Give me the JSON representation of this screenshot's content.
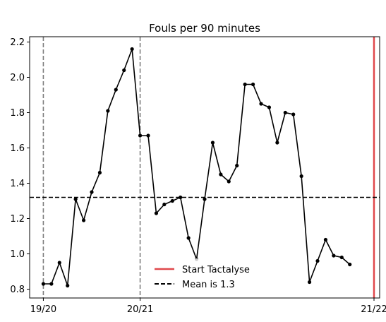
{
  "chart_data": {
    "type": "line",
    "title": "Fouls per 90 minutes",
    "xlabel": "",
    "ylabel": "",
    "ylim": [
      0.75,
      2.23
    ],
    "yticks": [
      0.8,
      1.0,
      1.2,
      1.4,
      1.6,
      1.8,
      2.0,
      2.2
    ],
    "ytick_labels": [
      "0.8",
      "1.0",
      "1.2",
      "1.4",
      "1.6",
      "1.8",
      "2.0",
      "2.2"
    ],
    "xlim": [
      -1.7,
      41.7
    ],
    "xticks": [
      {
        "x": 0,
        "label": "19/20"
      },
      {
        "x": 12,
        "label": "20/21"
      },
      {
        "x": 41,
        "label": "21/22"
      }
    ],
    "season_lines": [
      0,
      12
    ],
    "series": [
      {
        "x": [
          0,
          1,
          2,
          3,
          4,
          5,
          6,
          7,
          8,
          9,
          10,
          11,
          12,
          13,
          14,
          15,
          16,
          17,
          18,
          19,
          20,
          21,
          22,
          23,
          24,
          25,
          26,
          27,
          28,
          29,
          30,
          31,
          32,
          33,
          34,
          35,
          36,
          37,
          38,
          39
        ],
        "values": [
          0.83,
          0.83,
          0.95,
          0.82,
          1.31,
          1.19,
          1.35,
          1.46,
          1.81,
          1.93,
          2.04,
          2.16,
          1.67,
          1.67,
          1.23,
          1.28,
          1.3,
          1.32,
          1.09,
          0.97,
          1.31,
          1.63,
          1.45,
          1.41,
          1.5,
          1.96,
          1.96,
          1.85,
          1.83,
          1.63,
          1.8,
          1.79,
          1.44,
          0.84,
          0.96,
          1.08,
          0.99,
          0.98,
          0.94,
          null
        ],
        "color": "#000000"
      }
    ],
    "start_line": {
      "x": 41,
      "color": "#e0484c"
    },
    "mean_line": {
      "y": 1.32
    },
    "legend": {
      "placement": "lower-center",
      "entries": [
        {
          "label": "Start Tactalyse",
          "style": "solid",
          "color": "#e0484c"
        },
        {
          "label": "Mean is 1.3",
          "style": "dashed",
          "color": "#000000"
        }
      ]
    }
  }
}
